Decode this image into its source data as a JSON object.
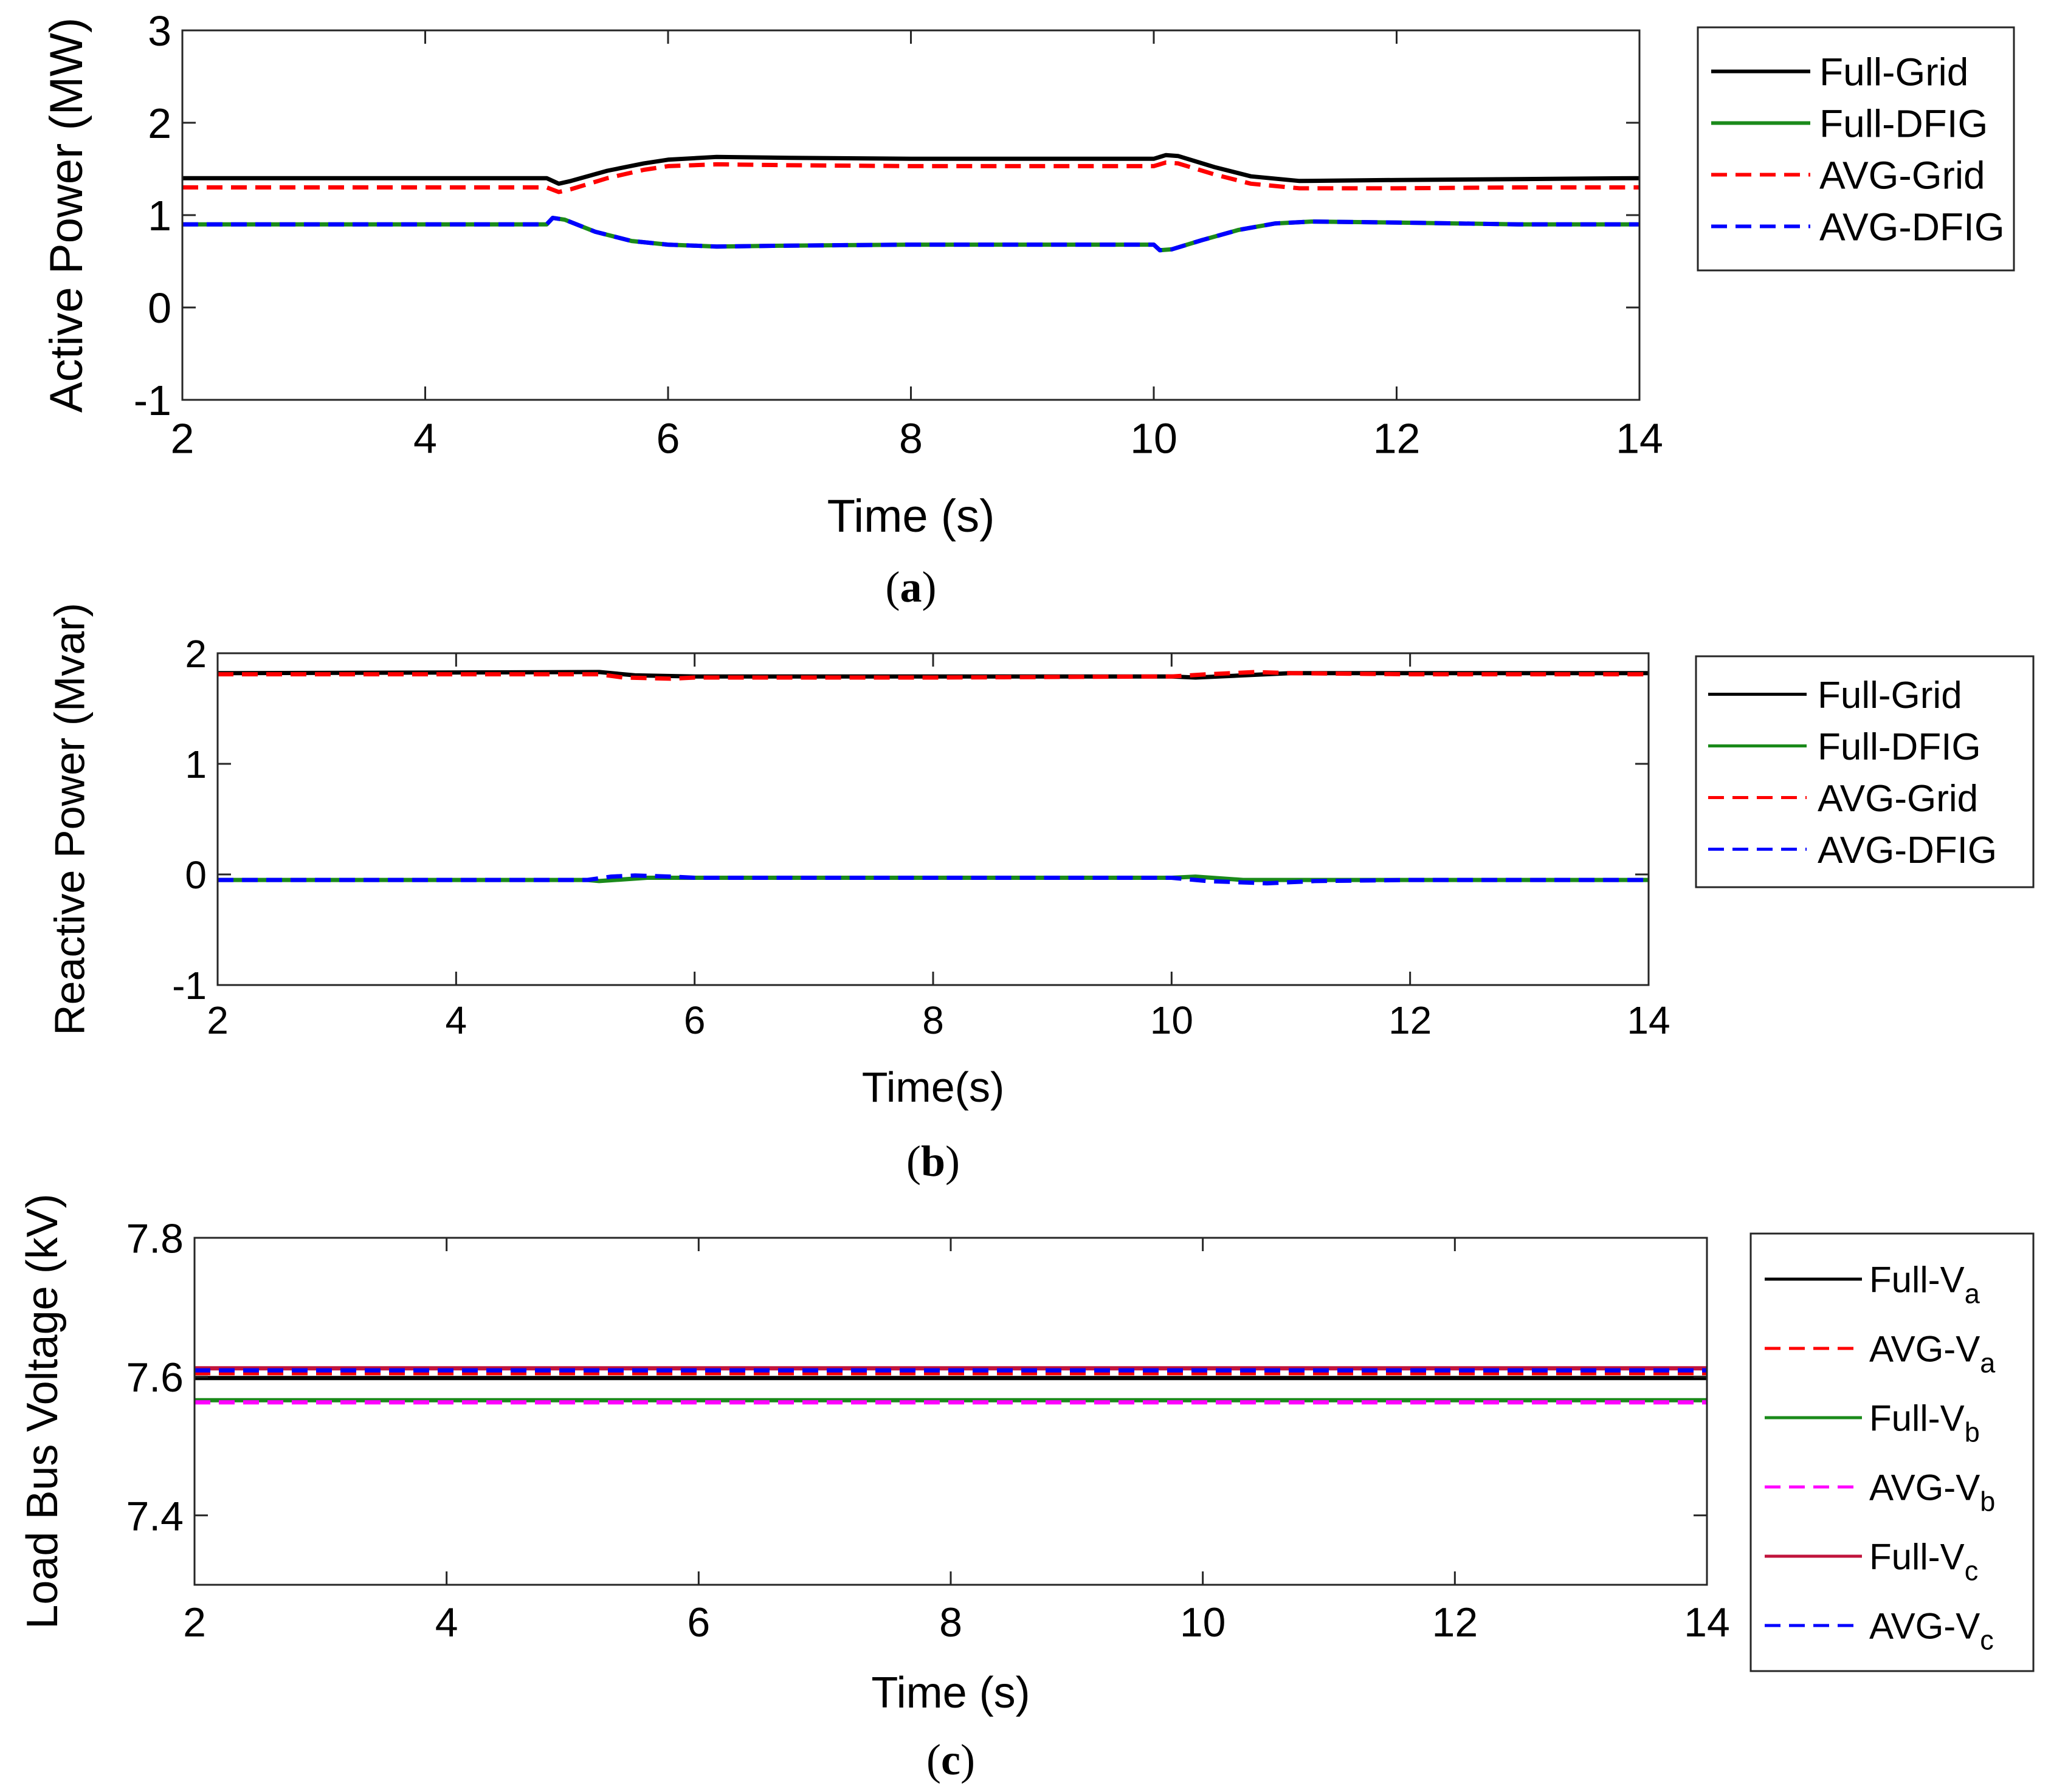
{
  "chart_data": [
    {
      "type": "line",
      "panel_label": "a",
      "xlabel": "Time (s)",
      "ylabel": "Active Power (MW)",
      "xlim": [
        2,
        14
      ],
      "ylim": [
        -1,
        3
      ],
      "xticks": [
        2,
        4,
        6,
        8,
        10,
        12,
        14
      ],
      "yticks": [
        -1,
        0,
        1,
        2,
        3
      ],
      "series": [
        {
          "name": "Full-Grid",
          "color": "#000000",
          "dash": "solid",
          "points": [
            [
              2,
              1.4
            ],
            [
              5.0,
              1.4
            ],
            [
              5.1,
              1.34
            ],
            [
              5.2,
              1.37
            ],
            [
              5.5,
              1.48
            ],
            [
              5.8,
              1.56
            ],
            [
              6.0,
              1.6
            ],
            [
              6.4,
              1.63
            ],
            [
              7,
              1.62
            ],
            [
              8,
              1.61
            ],
            [
              9,
              1.61
            ],
            [
              10,
              1.61
            ],
            [
              10.1,
              1.65
            ],
            [
              10.2,
              1.64
            ],
            [
              10.5,
              1.52
            ],
            [
              10.8,
              1.42
            ],
            [
              11.2,
              1.37
            ],
            [
              12,
              1.38
            ],
            [
              13,
              1.39
            ],
            [
              14,
              1.4
            ]
          ]
        },
        {
          "name": "Full-DFIG",
          "color": "#1a8a1a",
          "dash": "solid",
          "points": [
            [
              2,
              0.9
            ],
            [
              5.0,
              0.9
            ],
            [
              5.05,
              0.97
            ],
            [
              5.15,
              0.95
            ],
            [
              5.4,
              0.82
            ],
            [
              5.7,
              0.72
            ],
            [
              6,
              0.68
            ],
            [
              6.4,
              0.66
            ],
            [
              7,
              0.67
            ],
            [
              8,
              0.68
            ],
            [
              9,
              0.68
            ],
            [
              10,
              0.68
            ],
            [
              10.05,
              0.62
            ],
            [
              10.15,
              0.63
            ],
            [
              10.4,
              0.73
            ],
            [
              10.7,
              0.84
            ],
            [
              11.0,
              0.91
            ],
            [
              11.3,
              0.93
            ],
            [
              12,
              0.92
            ],
            [
              13,
              0.9
            ],
            [
              14,
              0.9
            ]
          ]
        },
        {
          "name": "AVG-Grid",
          "color": "#ff0000",
          "dash": "dashed",
          "points": [
            [
              2,
              1.3
            ],
            [
              5.0,
              1.3
            ],
            [
              5.1,
              1.25
            ],
            [
              5.2,
              1.28
            ],
            [
              5.5,
              1.4
            ],
            [
              5.8,
              1.49
            ],
            [
              6.0,
              1.53
            ],
            [
              6.4,
              1.55
            ],
            [
              7,
              1.54
            ],
            [
              8,
              1.53
            ],
            [
              9,
              1.53
            ],
            [
              10,
              1.53
            ],
            [
              10.1,
              1.57
            ],
            [
              10.2,
              1.56
            ],
            [
              10.5,
              1.44
            ],
            [
              10.8,
              1.34
            ],
            [
              11.2,
              1.29
            ],
            [
              12,
              1.29
            ],
            [
              13,
              1.3
            ],
            [
              14,
              1.3
            ]
          ]
        },
        {
          "name": "AVG-DFIG",
          "color": "#0000ff",
          "dash": "dashed",
          "points": [
            [
              2,
              0.9
            ],
            [
              5.0,
              0.9
            ],
            [
              5.05,
              0.97
            ],
            [
              5.15,
              0.95
            ],
            [
              5.4,
              0.82
            ],
            [
              5.7,
              0.72
            ],
            [
              6,
              0.68
            ],
            [
              6.4,
              0.66
            ],
            [
              7,
              0.67
            ],
            [
              8,
              0.68
            ],
            [
              9,
              0.68
            ],
            [
              10,
              0.68
            ],
            [
              10.05,
              0.62
            ],
            [
              10.15,
              0.63
            ],
            [
              10.4,
              0.73
            ],
            [
              10.7,
              0.84
            ],
            [
              11.0,
              0.91
            ],
            [
              11.3,
              0.93
            ],
            [
              12,
              0.92
            ],
            [
              13,
              0.9
            ],
            [
              14,
              0.9
            ]
          ]
        }
      ],
      "legend": [
        "Full-Grid",
        "Full-DFIG",
        "AVG-Grid",
        "AVG-DFIG"
      ],
      "legend_position": "outside-right"
    },
    {
      "type": "line",
      "panel_label": "b",
      "xlabel": "Time(s)",
      "ylabel": "Reactive Power (Mvar)",
      "xlim": [
        2,
        14
      ],
      "ylim": [
        -1,
        2
      ],
      "xticks": [
        2,
        4,
        6,
        8,
        10,
        12,
        14
      ],
      "yticks": [
        -1,
        0,
        1,
        2
      ],
      "series": [
        {
          "name": "Full-Grid",
          "color": "#000000",
          "dash": "solid",
          "points": [
            [
              2,
              1.82
            ],
            [
              5.2,
              1.83
            ],
            [
              5.5,
              1.8
            ],
            [
              6,
              1.79
            ],
            [
              8,
              1.79
            ],
            [
              10,
              1.79
            ],
            [
              10.2,
              1.78
            ],
            [
              10.6,
              1.8
            ],
            [
              11,
              1.82
            ],
            [
              12,
              1.82
            ],
            [
              14,
              1.82
            ]
          ]
        },
        {
          "name": "Full-DFIG",
          "color": "#1a8a1a",
          "dash": "solid",
          "points": [
            [
              2,
              -0.05
            ],
            [
              5.1,
              -0.05
            ],
            [
              5.2,
              -0.06
            ],
            [
              5.6,
              -0.03
            ],
            [
              6,
              -0.03
            ],
            [
              8,
              -0.03
            ],
            [
              10,
              -0.03
            ],
            [
              10.2,
              -0.02
            ],
            [
              10.6,
              -0.05
            ],
            [
              11,
              -0.05
            ],
            [
              12,
              -0.05
            ],
            [
              14,
              -0.05
            ]
          ]
        },
        {
          "name": "AVG-Grid",
          "color": "#ff0000",
          "dash": "dashed",
          "points": [
            [
              2,
              1.81
            ],
            [
              5.2,
              1.81
            ],
            [
              5.4,
              1.78
            ],
            [
              5.8,
              1.77
            ],
            [
              6,
              1.78
            ],
            [
              8,
              1.78
            ],
            [
              10,
              1.79
            ],
            [
              10.3,
              1.81
            ],
            [
              10.7,
              1.83
            ],
            [
              11,
              1.82
            ],
            [
              12,
              1.81
            ],
            [
              14,
              1.81
            ]
          ]
        },
        {
          "name": "AVG-DFIG",
          "color": "#0000ff",
          "dash": "dashed",
          "points": [
            [
              2,
              -0.05
            ],
            [
              5.1,
              -0.05
            ],
            [
              5.3,
              -0.02
            ],
            [
              5.5,
              -0.01
            ],
            [
              5.8,
              -0.02
            ],
            [
              6,
              -0.03
            ],
            [
              8,
              -0.03
            ],
            [
              10,
              -0.03
            ],
            [
              10.3,
              -0.06
            ],
            [
              10.8,
              -0.08
            ],
            [
              11.2,
              -0.06
            ],
            [
              12,
              -0.05
            ],
            [
              14,
              -0.05
            ]
          ]
        }
      ],
      "legend": [
        "Full-Grid",
        "Full-DFIG",
        "AVG-Grid",
        "AVG-DFIG"
      ],
      "legend_position": "outside-right"
    },
    {
      "type": "line",
      "panel_label": "c",
      "xlabel": "Time (s)",
      "ylabel": "Load Bus Voltage (kV)",
      "xlim": [
        2,
        14
      ],
      "ylim": [
        7.3,
        7.8
      ],
      "xticks": [
        2,
        4,
        6,
        8,
        10,
        12,
        14
      ],
      "yticks": [
        7.4,
        7.6,
        7.8
      ],
      "series": [
        {
          "name": "Full-V",
          "sub": "a",
          "color": "#000000",
          "dash": "solid",
          "points": [
            [
              2,
              7.598
            ],
            [
              14,
              7.598
            ]
          ]
        },
        {
          "name": "AVG-V",
          "sub": "a",
          "color": "#ff0000",
          "dash": "dashed",
          "points": [
            [
              2,
              7.605
            ],
            [
              14,
              7.605
            ]
          ]
        },
        {
          "name": "Full-V",
          "sub": "b",
          "color": "#1a8a1a",
          "dash": "solid",
          "points": [
            [
              2,
              7.566
            ],
            [
              14,
              7.566
            ]
          ]
        },
        {
          "name": "AVG-V",
          "sub": "b",
          "color": "#ff00ff",
          "dash": "dashed",
          "points": [
            [
              2,
              7.563
            ],
            [
              14,
              7.563
            ]
          ]
        },
        {
          "name": "Full-V",
          "sub": "c",
          "color": "#c0143c",
          "dash": "solid",
          "points": [
            [
              2,
              7.612
            ],
            [
              14,
              7.612
            ]
          ]
        },
        {
          "name": "AVG-V",
          "sub": "c",
          "color": "#0000ff",
          "dash": "dashed",
          "points": [
            [
              2,
              7.609
            ],
            [
              14,
              7.609
            ]
          ]
        }
      ],
      "legend": [
        "Full-Va",
        "AVG-Va",
        "Full-Vb",
        "AVG-Vb",
        "Full-Vc",
        "AVG-Vc"
      ],
      "legend_position": "outside-right"
    }
  ]
}
